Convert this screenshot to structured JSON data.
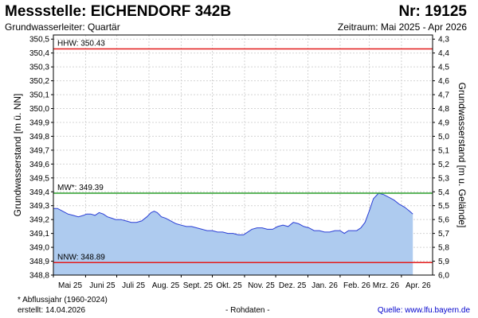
{
  "header": {
    "title": "Messstelle: EICHENDORF 342B",
    "nr": "Nr: 19125",
    "subtitle": "Grundwasserleiter: Quartär",
    "period": "Zeitraum: Mai 2025 - Apr 2026"
  },
  "footer": {
    "note": "* Abflussjahr (1960-2024)",
    "created": "erstellt:  14.04.2026",
    "rawdata": "- Rohdaten -",
    "source": "Quelle:  www.lfu.bayern.de"
  },
  "colors": {
    "fill": "#aecbef",
    "line": "#2b3fd6",
    "hhw": "#e31b1b",
    "mw": "#2a9e2a",
    "nnw": "#e31b1b",
    "grid": "#d4d4d4"
  },
  "chart_data": {
    "type": "area",
    "ylabel": "Grundwasserstand [m ü. NN]",
    "ylabel_right": "Grundwasserstand [m u. Gelände]",
    "ylim": [
      348.8,
      350.53
    ],
    "y_ticks": [
      "350,5",
      "350,4",
      "350,3",
      "350,2",
      "350,1",
      "350,0",
      "349,9",
      "349,8",
      "349,7",
      "349,6",
      "349,5",
      "349,4",
      "349,3",
      "349,2",
      "349,1",
      "349,0",
      "348,9",
      "348,8"
    ],
    "y_ticks_right": [
      "4,3",
      "4,4",
      "4,5",
      "4,6",
      "4,7",
      "4,8",
      "4,9",
      "5,0",
      "5,1",
      "5,2",
      "5,3",
      "5,4",
      "5,5",
      "5,6",
      "5,7",
      "5,8",
      "5,9",
      "6,0"
    ],
    "x_ticks": [
      "Mai 25",
      "Juni 25",
      "Juli 25",
      "Aug. 25",
      "Sept. 25",
      "Okt. 25",
      "Nov. 25",
      "Dez. 25",
      "Jan. 26",
      "Feb. 26",
      "Mrz. 26",
      "Apr. 26"
    ],
    "x_range_days": 365,
    "grid": true,
    "reference_lines": [
      {
        "label": "HHW: 350.43",
        "value": 350.43
      },
      {
        "label": "MW*: 349.39",
        "value": 349.39
      },
      {
        "label": "NNW: 348.89",
        "value": 348.89
      }
    ],
    "series": [
      {
        "x": [
          "2025-05-01",
          "2025-05-05",
          "2025-05-10",
          "2025-05-15",
          "2025-05-20",
          "2025-05-25",
          "2025-05-30",
          "2025-06-02",
          "2025-06-06",
          "2025-06-10",
          "2025-06-14",
          "2025-06-18",
          "2025-06-22",
          "2025-06-26",
          "2025-06-30",
          "2025-07-05",
          "2025-07-10",
          "2025-07-15",
          "2025-07-20",
          "2025-07-25",
          "2025-07-30",
          "2025-08-03",
          "2025-08-06",
          "2025-08-09",
          "2025-08-13",
          "2025-08-17",
          "2025-08-22",
          "2025-08-27",
          "2025-09-01",
          "2025-09-06",
          "2025-09-11",
          "2025-09-16",
          "2025-09-21",
          "2025-09-26",
          "2025-10-01",
          "2025-10-06",
          "2025-10-11",
          "2025-10-16",
          "2025-10-21",
          "2025-10-26",
          "2025-10-31",
          "2025-11-04",
          "2025-11-08",
          "2025-11-13",
          "2025-11-18",
          "2025-11-23",
          "2025-11-28",
          "2025-12-03",
          "2025-12-08",
          "2025-12-13",
          "2025-12-18",
          "2025-12-23",
          "2025-12-28",
          "2026-01-02",
          "2026-01-07",
          "2026-01-12",
          "2026-01-17",
          "2026-01-22",
          "2026-01-27",
          "2026-02-01",
          "2026-02-05",
          "2026-02-09",
          "2026-02-13",
          "2026-02-17",
          "2026-02-21",
          "2026-02-25",
          "2026-03-01",
          "2026-03-05",
          "2026-03-10",
          "2026-03-15",
          "2026-03-20",
          "2026-03-25",
          "2026-03-30",
          "2026-04-04",
          "2026-04-09",
          "2026-04-12"
        ],
        "y": [
          349.28,
          349.28,
          349.26,
          349.24,
          349.23,
          349.22,
          349.23,
          349.24,
          349.24,
          349.23,
          349.25,
          349.24,
          349.22,
          349.21,
          349.2,
          349.2,
          349.19,
          349.18,
          349.18,
          349.19,
          349.22,
          349.25,
          349.26,
          349.25,
          349.22,
          349.21,
          349.19,
          349.17,
          349.16,
          349.15,
          349.15,
          349.14,
          349.13,
          349.12,
          349.12,
          349.11,
          349.11,
          349.1,
          349.1,
          349.09,
          349.09,
          349.11,
          349.13,
          349.14,
          349.14,
          349.13,
          349.13,
          349.15,
          349.16,
          349.15,
          349.18,
          349.17,
          349.15,
          349.14,
          349.12,
          349.12,
          349.11,
          349.11,
          349.12,
          349.12,
          349.1,
          349.12,
          349.12,
          349.12,
          349.14,
          349.18,
          349.26,
          349.35,
          349.39,
          349.38,
          349.36,
          349.34,
          349.31,
          349.29,
          349.26,
          349.24
        ]
      }
    ]
  }
}
